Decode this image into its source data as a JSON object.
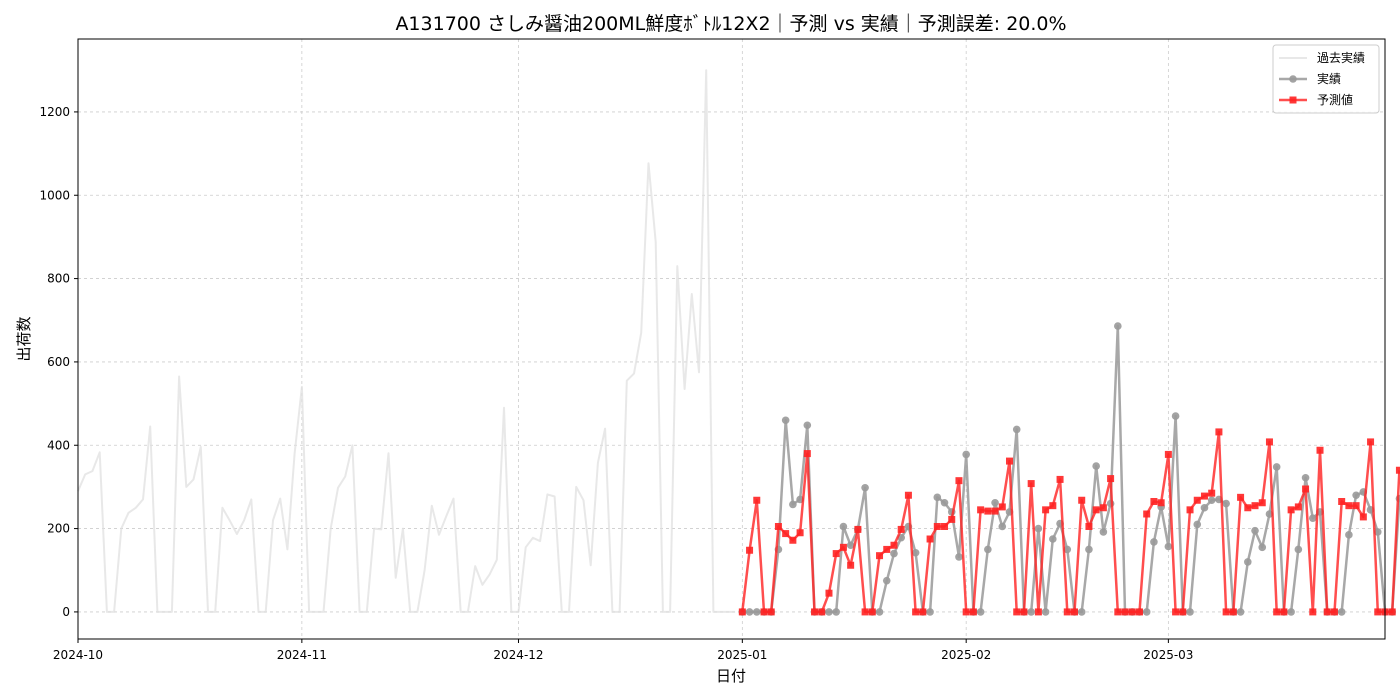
{
  "chart_data": {
    "type": "line",
    "title": "A131700 さしみ醤油200ML鮮度ﾎﾞﾄﾙ12X2｜予測 vs 実績｜予測誤差: 20.0%",
    "xlabel": "日付",
    "ylabel": "出荷数",
    "xlim": [
      "2024-10-01",
      "2025-03-31"
    ],
    "ylim": [
      -65,
      1375
    ],
    "x_ticks": [
      "2024-10",
      "2024-11",
      "2024-12",
      "2025-01",
      "2025-02",
      "2025-03"
    ],
    "y_ticks": [
      0,
      200,
      400,
      600,
      800,
      1000,
      1200
    ],
    "grid": true,
    "legend_position": "top-right",
    "series": [
      {
        "name": "過去実績",
        "color": "#e0e0e0",
        "start_date": "2024-10-01",
        "values": [
          290,
          330,
          338,
          383,
          0,
          0,
          200,
          238,
          250,
          270,
          445,
          0,
          0,
          0,
          565,
          300,
          318,
          396,
          0,
          0,
          250,
          220,
          187,
          220,
          270,
          0,
          0,
          220,
          272,
          150,
          380,
          540,
          0,
          0,
          0,
          200,
          298,
          325,
          400,
          0,
          0,
          200,
          198,
          381,
          82,
          200,
          0,
          0,
          100,
          255,
          185,
          230,
          272,
          0,
          0,
          110,
          65,
          90,
          125,
          490,
          0,
          0,
          155,
          178,
          170,
          282,
          277,
          0,
          0,
          300,
          268,
          112,
          358,
          440,
          0,
          0,
          555,
          572,
          670,
          1077,
          888,
          0,
          0,
          830,
          535,
          763,
          575,
          1300,
          0,
          0,
          0,
          0
        ]
      },
      {
        "name": "実績",
        "color": "#999999",
        "start_date": "2025-01-01",
        "values": [
          0,
          0,
          0,
          0,
          0,
          150,
          460,
          258,
          270,
          448,
          0,
          0,
          0,
          0,
          205,
          160,
          198,
          298,
          0,
          0,
          75,
          140,
          178,
          205,
          142,
          0,
          0,
          275,
          262,
          240,
          132,
          378,
          0,
          0,
          150,
          262,
          205,
          240,
          438,
          0,
          0,
          200,
          0,
          175,
          212,
          150,
          0,
          0,
          150,
          350,
          192,
          260,
          686,
          0,
          0,
          0,
          0,
          168,
          252,
          157,
          470,
          0,
          0,
          210,
          250,
          268,
          270,
          260,
          0,
          0,
          120,
          195,
          155,
          235,
          348,
          0,
          0,
          150,
          322,
          225,
          240,
          0,
          0,
          0,
          185,
          280,
          288,
          245,
          192,
          0,
          0,
          272
        ]
      },
      {
        "name": "予測値",
        "color": "#ff2222",
        "start_date": "2025-01-01",
        "values": [
          0,
          148,
          268,
          0,
          0,
          205,
          188,
          172,
          190,
          380,
          0,
          0,
          45,
          140,
          155,
          112,
          198,
          0,
          0,
          135,
          150,
          160,
          198,
          280,
          0,
          0,
          175,
          205,
          205,
          222,
          315,
          0,
          0,
          245,
          242,
          242,
          252,
          362,
          0,
          0,
          308,
          0,
          245,
          255,
          318,
          0,
          0,
          268,
          205,
          245,
          250,
          320,
          0,
          0,
          0,
          0,
          235,
          265,
          262,
          378,
          0,
          0,
          245,
          268,
          278,
          285,
          432,
          0,
          0,
          275,
          250,
          255,
          262,
          408,
          0,
          0,
          245,
          252,
          295,
          0,
          388,
          0,
          0,
          265,
          255,
          255,
          228,
          408,
          0,
          0,
          0,
          340
        ]
      }
    ]
  }
}
